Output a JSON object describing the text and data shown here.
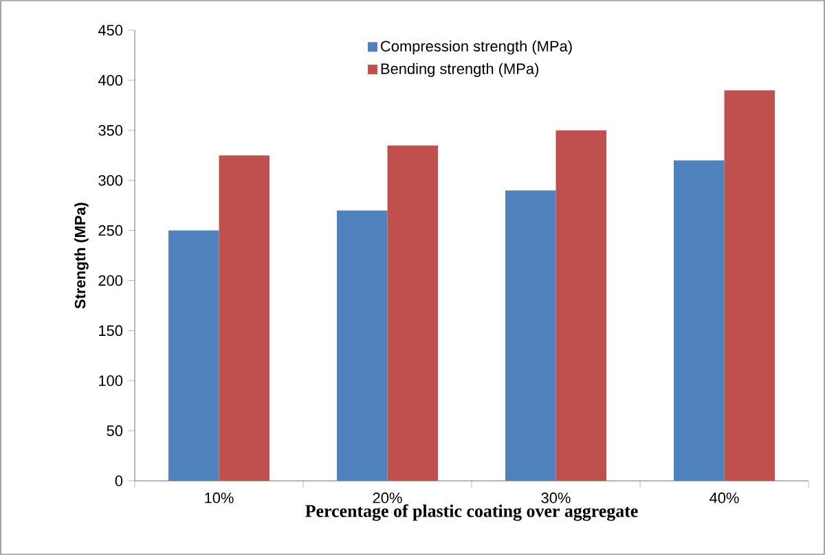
{
  "chart_data": {
    "type": "bar",
    "xlabel": "Percentage of plastic coating over aggregate",
    "ylabel": "Strength (MPa)",
    "categories": [
      "10%",
      "20%",
      "30%",
      "40%"
    ],
    "series": [
      {
        "name": "Compression strength (MPa)",
        "color": "#4f81bd",
        "values": [
          250,
          270,
          290,
          320
        ]
      },
      {
        "name": "Bending strength (MPa)",
        "color": "#c0504d",
        "values": [
          325,
          335,
          350,
          390
        ]
      }
    ],
    "ylim": [
      0,
      450
    ],
    "yticks": [
      0,
      50,
      100,
      150,
      200,
      250,
      300,
      350,
      400,
      450
    ],
    "grid": false,
    "legend": "top"
  }
}
